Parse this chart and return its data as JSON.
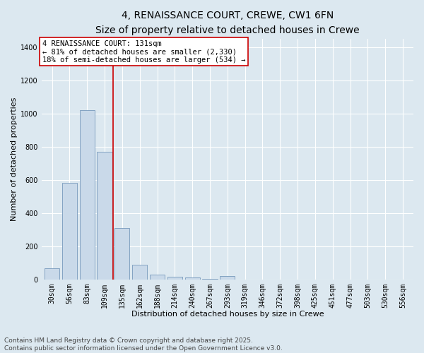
{
  "title_line1": "4, RENAISSANCE COURT, CREWE, CW1 6FN",
  "title_line2": "Size of property relative to detached houses in Crewe",
  "xlabel": "Distribution of detached houses by size in Crewe",
  "ylabel": "Number of detached properties",
  "categories": [
    "30sqm",
    "56sqm",
    "83sqm",
    "109sqm",
    "135sqm",
    "162sqm",
    "188sqm",
    "214sqm",
    "240sqm",
    "267sqm",
    "293sqm",
    "319sqm",
    "346sqm",
    "372sqm",
    "398sqm",
    "425sqm",
    "451sqm",
    "477sqm",
    "503sqm",
    "530sqm",
    "556sqm"
  ],
  "values": [
    65,
    580,
    1020,
    770,
    310,
    90,
    30,
    15,
    10,
    5,
    18,
    0,
    0,
    0,
    0,
    0,
    0,
    0,
    0,
    0,
    0
  ],
  "bar_color": "#c9d9e9",
  "bar_edge_color": "#7799bb",
  "vline_color": "#cc0000",
  "annotation_text": "4 RENAISSANCE COURT: 131sqm\n← 81% of detached houses are smaller (2,330)\n18% of semi-detached houses are larger (534) →",
  "annotation_box_color": "white",
  "annotation_box_edge": "#cc0000",
  "ylim": [
    0,
    1450
  ],
  "yticks": [
    0,
    200,
    400,
    600,
    800,
    1000,
    1200,
    1400
  ],
  "background_color": "#dce8f0",
  "grid_color": "white",
  "footer_line1": "Contains HM Land Registry data © Crown copyright and database right 2025.",
  "footer_line2": "Contains public sector information licensed under the Open Government Licence v3.0.",
  "title_fontsize": 10,
  "subtitle_fontsize": 9,
  "axis_label_fontsize": 8,
  "tick_fontsize": 7,
  "annotation_fontsize": 7.5,
  "footer_fontsize": 6.5
}
